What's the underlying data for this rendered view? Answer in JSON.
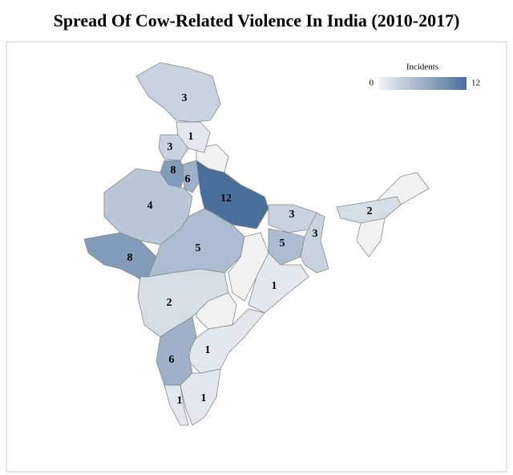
{
  "chart_data": {
    "type": "choropleth",
    "title": "Spread Of Cow-Related Violence In India (2010-2017)",
    "legend_title": "Incidents",
    "colorlim": [
      0,
      12
    ],
    "colors": [
      "#f1f3f6",
      "#4b6f9c"
    ],
    "values": [
      3,
      1,
      3,
      8,
      6,
      12,
      4,
      8,
      5,
      3,
      5,
      3,
      2,
      1,
      2,
      1,
      6,
      1,
      1
    ]
  }
}
